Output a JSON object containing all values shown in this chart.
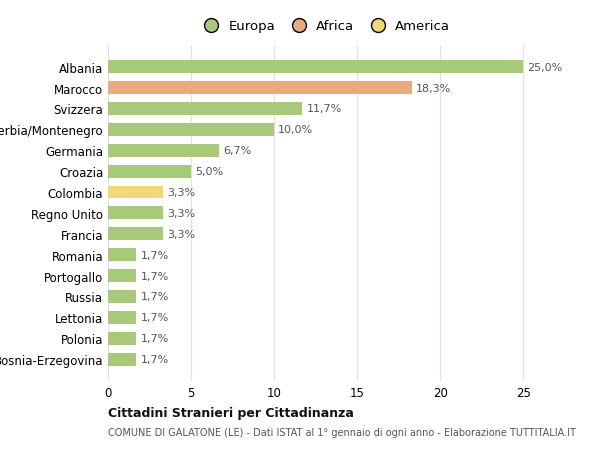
{
  "categories": [
    "Bosnia-Erzegovina",
    "Polonia",
    "Lettonia",
    "Russia",
    "Portogallo",
    "Romania",
    "Francia",
    "Regno Unito",
    "Colombia",
    "Croazia",
    "Germania",
    "Serbia/Montenegro",
    "Svizzera",
    "Marocco",
    "Albania"
  ],
  "values": [
    1.7,
    1.7,
    1.7,
    1.7,
    1.7,
    1.7,
    3.3,
    3.3,
    3.3,
    5.0,
    6.7,
    10.0,
    11.7,
    18.3,
    25.0
  ],
  "continents": [
    "Europa",
    "Europa",
    "Europa",
    "Europa",
    "Europa",
    "Europa",
    "Europa",
    "Europa",
    "America",
    "Europa",
    "Europa",
    "Europa",
    "Europa",
    "Africa",
    "Europa"
  ],
  "colors": {
    "Europa": "#a8c87a",
    "Africa": "#e8aa80",
    "America": "#f0d878"
  },
  "legend_labels": [
    "Europa",
    "Africa",
    "America"
  ],
  "legend_colors": [
    "#a8c87a",
    "#e8aa80",
    "#f0d878"
  ],
  "title_bold": "Cittadini Stranieri per Cittadinanza",
  "subtitle": "COMUNE DI GALATONE (LE) - Dati ISTAT al 1° gennaio di ogni anno - Elaborazione TUTTITALIA.IT",
  "xlim": [
    0,
    26
  ],
  "xticks": [
    0,
    5,
    10,
    15,
    20,
    25
  ],
  "background_color": "#ffffff",
  "grid_color": "#e0e0e0",
  "bar_label_fontsize": 8,
  "tick_fontsize": 8.5,
  "legend_fontsize": 9.5
}
